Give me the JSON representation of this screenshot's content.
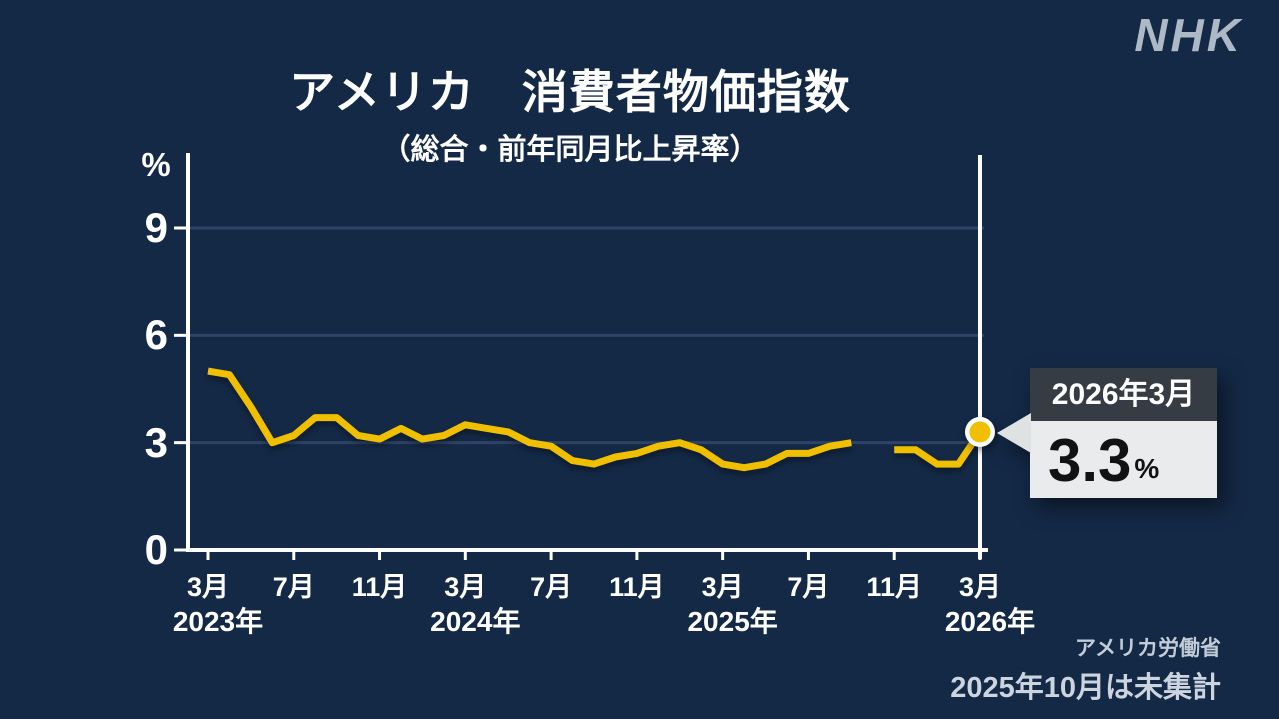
{
  "logo": {
    "text": "NHK"
  },
  "chart_data": {
    "type": "line",
    "title": "アメリカ　消費者物価指数",
    "subtitle": "（総合・前年同月比上昇率）",
    "y_axis": {
      "unit": "%",
      "ticks": [
        0,
        3,
        6,
        9
      ],
      "range": [
        0,
        11
      ]
    },
    "x_axis": {
      "start": "2023年3月",
      "end": "2026年3月",
      "tick_month_interval": 4,
      "tick_labels": [
        "3月",
        "7月",
        "11月",
        "3月",
        "7月",
        "11月",
        "3月",
        "7月",
        "11月",
        "3月"
      ],
      "year_labels": [
        {
          "label": "2023年",
          "month_index": 0
        },
        {
          "label": "2024年",
          "month_index": 12
        },
        {
          "label": "2025年",
          "month_index": 24
        },
        {
          "label": "2026年",
          "month_index": 36
        }
      ]
    },
    "months": [
      "2023年3月",
      "2023年4月",
      "2023年5月",
      "2023年6月",
      "2023年7月",
      "2023年8月",
      "2023年9月",
      "2023年10月",
      "2023年11月",
      "2023年12月",
      "2024年1月",
      "2024年2月",
      "2024年3月",
      "2024年4月",
      "2024年5月",
      "2024年6月",
      "2024年7月",
      "2024年8月",
      "2024年9月",
      "2024年10月",
      "2024年11月",
      "2024年12月",
      "2025年1月",
      "2025年2月",
      "2025年3月",
      "2025年4月",
      "2025年5月",
      "2025年6月",
      "2025年7月",
      "2025年8月",
      "2025年9月",
      "2025年10月",
      "2025年11月",
      "2025年12月",
      "2026年1月",
      "2026年2月",
      "2026年3月"
    ],
    "series": [
      {
        "name": "消費者物価指数 前年同月比上昇率",
        "color": "#f0c000",
        "values": [
          5.0,
          4.9,
          4.0,
          3.0,
          3.2,
          3.7,
          3.7,
          3.2,
          3.1,
          3.4,
          3.1,
          3.2,
          3.5,
          3.4,
          3.3,
          3.0,
          2.9,
          2.5,
          2.4,
          2.6,
          2.7,
          2.9,
          3.0,
          2.8,
          2.4,
          2.3,
          2.4,
          2.7,
          2.7,
          2.9,
          3.0,
          null,
          2.8,
          2.8,
          2.4,
          2.4,
          3.3
        ]
      }
    ],
    "gap_month_index": 31,
    "highlight": {
      "month_index": 36,
      "label": "2026年3月",
      "value": "3.3",
      "unit": "%"
    },
    "grid": "horizontal-only",
    "legend": "none"
  },
  "footnotes": {
    "source": "アメリカ労働省",
    "note": "2025年10月は未集計"
  },
  "colors": {
    "background": "#142946",
    "line": "#f0c000",
    "axis": "#ffffff",
    "grid": "#2e4366",
    "highlight_line": "#ffffff",
    "dot_ring": "#ffffff",
    "callout_header_bg": "#353c44",
    "callout_body_bg": "#e9ebed",
    "callout_text": "#121212",
    "arrow": "#dfe2e3",
    "footnote_text": "#ccd4e0",
    "logo": "#aeb9c6"
  }
}
